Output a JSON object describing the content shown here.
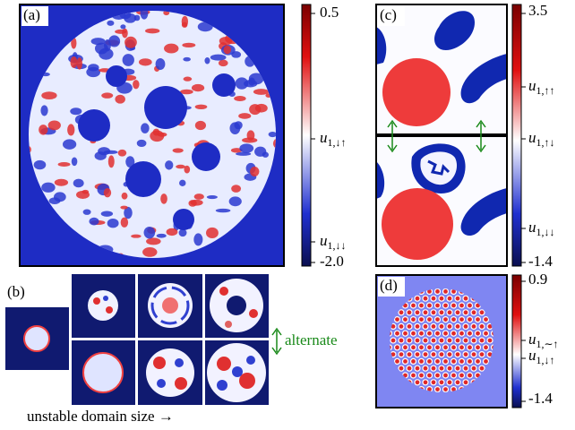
{
  "panels": {
    "a": {
      "label": "(a)",
      "colorbar": {
        "ticks": [
          {
            "label": "0.5"
          },
          {
            "symbol": "u",
            "subscript": "1,↓↑"
          },
          {
            "symbol": "u",
            "subscript": "1,↓↓"
          },
          {
            "label": "-2.0"
          }
        ]
      }
    },
    "b": {
      "label": "(b)",
      "annotation": "alternate",
      "caption": "unstable domain size →"
    },
    "c": {
      "label": "(c)",
      "colorbar": {
        "ticks": [
          {
            "label": "3.5"
          },
          {
            "symbol": "u",
            "subscript": "1,↑↑"
          },
          {
            "symbol": "u",
            "subscript": "1,↑↓"
          },
          {
            "symbol": "u",
            "subscript": "1,↓↓"
          },
          {
            "label": "-1.4"
          }
        ]
      }
    },
    "d": {
      "label": "(d)",
      "colorbar": {
        "ticks": [
          {
            "label": "0.9"
          },
          {
            "symbol": "u",
            "subscript": "1,∼↑"
          },
          {
            "symbol": "u",
            "subscript": "1,↓↑"
          },
          {
            "label": "-1.4"
          }
        ]
      }
    }
  }
}
